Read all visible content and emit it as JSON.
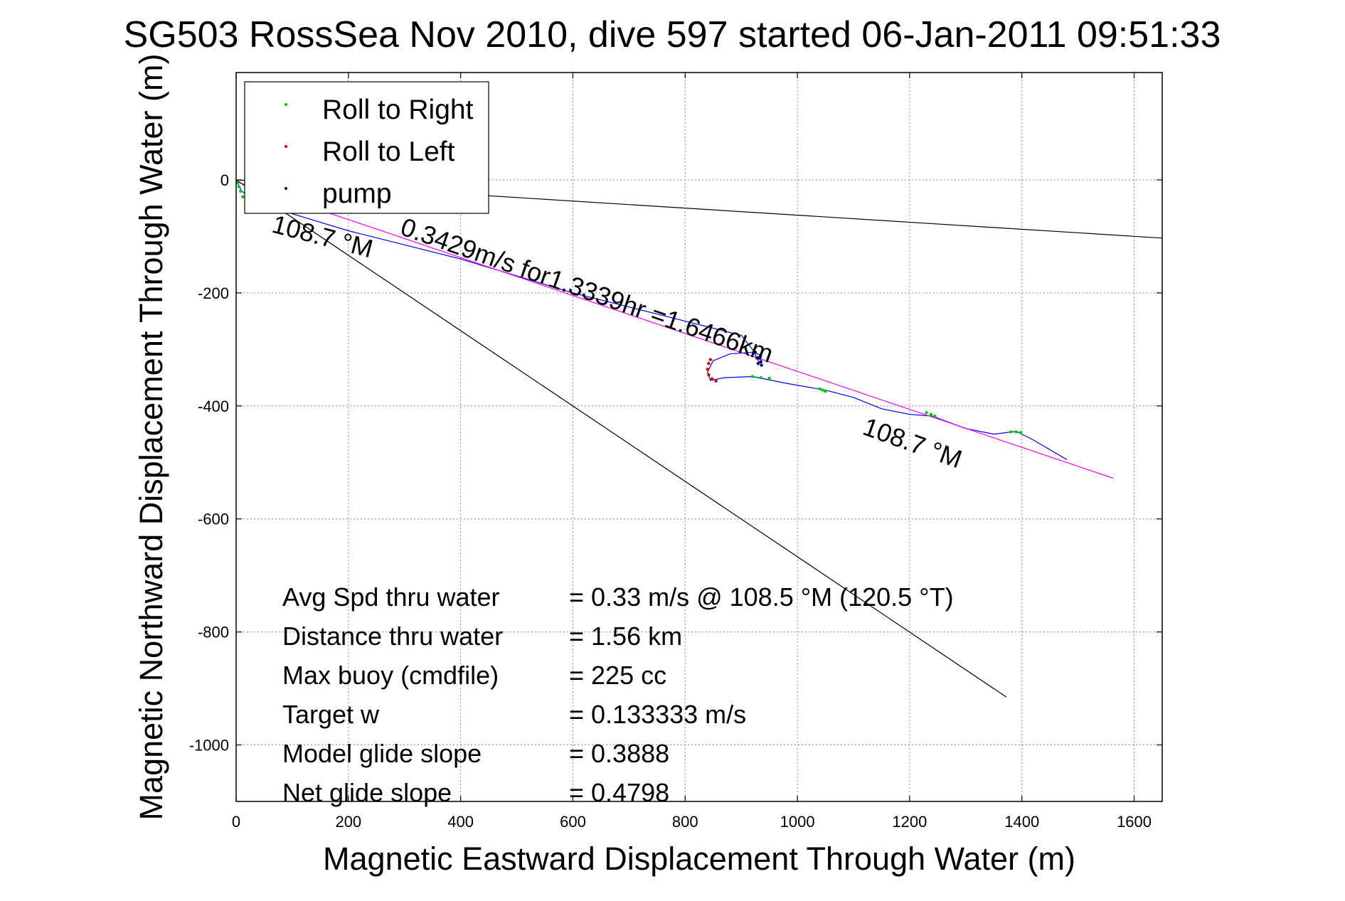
{
  "chart_data": {
    "type": "line",
    "title": "SG503 RossSea Nov 2010, dive 597 started 06-Jan-2011 09:51:33",
    "xlabel": "Magnetic Eastward Displacement Through Water (m)",
    "ylabel": "Magnetic Northward Displacement Through Water (m)",
    "xlim": [
      0,
      1650
    ],
    "ylim": [
      -1100,
      190
    ],
    "xticks": [
      0,
      200,
      400,
      600,
      800,
      1000,
      1200,
      1400,
      1600
    ],
    "yticks": [
      -1000,
      -800,
      -600,
      -400,
      -200,
      0
    ],
    "grid": true,
    "legend": {
      "placement": "top-left",
      "entries": [
        {
          "label": "Roll to Right",
          "color": "#00cc00"
        },
        {
          "label": "Roll to Left",
          "color": "#dd0000"
        },
        {
          "label": "pump",
          "color": "#000080"
        }
      ]
    },
    "series": [
      {
        "name": "track",
        "color": "#0000ff",
        "x": [
          0,
          10,
          40,
          100,
          200,
          300,
          400,
          500,
          600,
          700,
          800,
          860,
          900,
          920,
          930,
          935,
          935,
          920,
          880,
          850,
          840,
          845,
          870,
          920,
          980,
          1050,
          1100,
          1150,
          1200,
          1240,
          1300,
          1350,
          1390,
          1420,
          1480
        ],
        "y": [
          0,
          -20,
          -40,
          -60,
          -90,
          -115,
          -140,
          -170,
          -200,
          -225,
          -250,
          -265,
          -275,
          -300,
          -320,
          -325,
          -310,
          -305,
          -308,
          -320,
          -340,
          -355,
          -350,
          -348,
          -360,
          -372,
          -385,
          -405,
          -415,
          -418,
          -440,
          -450,
          -445,
          -460,
          -495
        ]
      },
      {
        "name": "fit",
        "color": "#ff00ff",
        "x": [
          0,
          1563
        ],
        "y": [
          -3,
          -528
        ]
      },
      {
        "name": "heading-line-lower",
        "color": "#000000",
        "x": [
          0,
          1372
        ],
        "y": [
          0,
          -915
        ]
      },
      {
        "name": "heading-line-upper",
        "color": "#000000",
        "x": [
          0,
          1650
        ],
        "y": [
          0,
          -103
        ]
      }
    ],
    "markers": [
      {
        "type": "Roll to Right",
        "color": "#00cc00",
        "x": [
          2,
          5,
          8,
          12,
          920,
          935,
          950,
          1040,
          1045,
          1050,
          1230,
          1238,
          1245,
          1380,
          1390,
          1398
        ],
        "y": [
          -5,
          -12,
          -20,
          -30,
          -348,
          -350,
          -351,
          -370,
          -372,
          -374,
          -412,
          -415,
          -418,
          -446,
          -446,
          -447
        ]
      },
      {
        "name": "Roll to Left",
        "type": "Roll to Left",
        "color": "#dd0000",
        "x": [
          845,
          842,
          840,
          842,
          848,
          855
        ],
        "y": [
          -318,
          -325,
          -335,
          -345,
          -352,
          -356
        ]
      },
      {
        "type": "pump",
        "color": "#000080",
        "x": [
          925,
          930,
          935,
          936,
          930,
          928,
          934
        ],
        "y": [
          -305,
          -315,
          -322,
          -328,
          -325,
          -315,
          -312
        ]
      }
    ],
    "annotations": [
      {
        "text": "0.3429m/s for1.3339hr =1.6466km",
        "x": 620,
        "y": -210
      },
      {
        "text": "108.7 °M",
        "x": 150,
        "y": -115
      },
      {
        "text": "108.7 °M",
        "x": 1200,
        "y": -480
      }
    ],
    "stats": [
      {
        "label": "Avg Spd thru water",
        "value": "=  0.33 m/s @ 108.5  °M (120.5 °T)"
      },
      {
        "label": "Distance thru water",
        "value": "=  1.56 km"
      },
      {
        "label": "Max buoy (cmdfile)",
        "value": "= 225 cc"
      },
      {
        "label": "Target w",
        "value": "= 0.133333 m/s"
      },
      {
        "label": "Model glide slope",
        "value": "= 0.3888"
      },
      {
        "label": "Net glide slope",
        "value": "= 0.4798"
      }
    ]
  }
}
